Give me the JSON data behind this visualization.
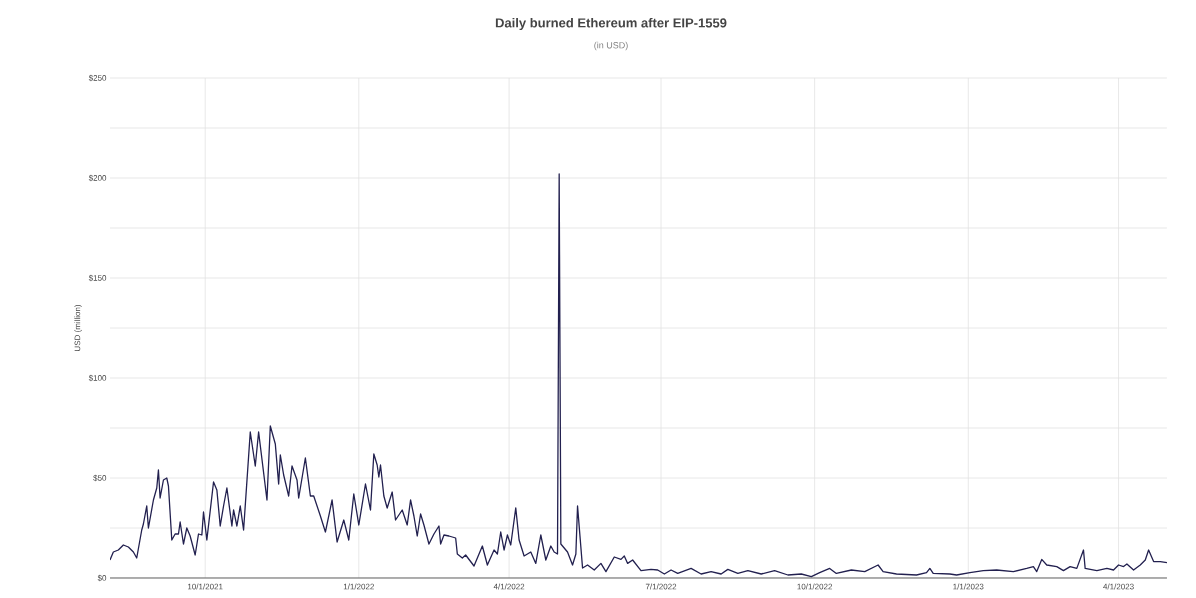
{
  "chart_data": {
    "type": "line",
    "title": "Daily burned Ethereum after EIP-1559",
    "subtitle": "(in USD)",
    "ylabel": "USD (million)",
    "xlim": [
      "2021-08-05",
      "2023-04-30"
    ],
    "ylim": [
      0,
      250
    ],
    "xticks": [
      {
        "value": "2021-10-01",
        "label": "10/1/2021"
      },
      {
        "value": "2022-01-01",
        "label": "1/1/2022"
      },
      {
        "value": "2022-04-01",
        "label": "4/1/2022"
      },
      {
        "value": "2022-07-01",
        "label": "7/1/2022"
      },
      {
        "value": "2022-10-01",
        "label": "10/1/2022"
      },
      {
        "value": "2023-01-01",
        "label": "1/1/2023"
      },
      {
        "value": "2023-04-01",
        "label": "4/1/2023"
      }
    ],
    "yticks": [
      {
        "value": 0,
        "label": "$0"
      },
      {
        "value": 25,
        "label": null
      },
      {
        "value": 50,
        "label": "$50"
      },
      {
        "value": 75,
        "label": null
      },
      {
        "value": 100,
        "label": "$100"
      },
      {
        "value": 125,
        "label": null
      },
      {
        "value": 150,
        "label": "$150"
      },
      {
        "value": 175,
        "label": null
      },
      {
        "value": 200,
        "label": "$200"
      },
      {
        "value": 225,
        "label": null
      },
      {
        "value": 250,
        "label": "$250"
      }
    ],
    "grid": true,
    "marker": "none",
    "line_style": "solid",
    "series": [
      {
        "color": "#22204f",
        "x": [
          "2021-08-05",
          "2021-08-07",
          "2021-08-10",
          "2021-08-13",
          "2021-08-16",
          "2021-08-19",
          "2021-08-21",
          "2021-08-24",
          "2021-08-25",
          "2021-08-27",
          "2021-08-28",
          "2021-08-31",
          "2021-09-02",
          "2021-09-03",
          "2021-09-04",
          "2021-09-06",
          "2021-09-08",
          "2021-09-09",
          "2021-09-11",
          "2021-09-13",
          "2021-09-15",
          "2021-09-16",
          "2021-09-18",
          "2021-09-20",
          "2021-09-22",
          "2021-09-25",
          "2021-09-27",
          "2021-09-29",
          "2021-09-30",
          "2021-10-02",
          "2021-10-06",
          "2021-10-08",
          "2021-10-10",
          "2021-10-12",
          "2021-10-14",
          "2021-10-17",
          "2021-10-18",
          "2021-10-20",
          "2021-10-22",
          "2021-10-24",
          "2021-10-28",
          "2021-10-31",
          "2021-11-02",
          "2021-11-07",
          "2021-11-09",
          "2021-11-12",
          "2021-11-14",
          "2021-11-15",
          "2021-11-17",
          "2021-11-20",
          "2021-11-22",
          "2021-11-25",
          "2021-11-26",
          "2021-11-30",
          "2021-12-03",
          "2021-12-05",
          "2021-12-09",
          "2021-12-12",
          "2021-12-16",
          "2021-12-19",
          "2021-12-23",
          "2021-12-26",
          "2021-12-29",
          "2022-01-01",
          "2022-01-05",
          "2022-01-08",
          "2022-01-10",
          "2022-01-12",
          "2022-01-13",
          "2022-01-14",
          "2022-01-16",
          "2022-01-18",
          "2022-01-21",
          "2022-01-23",
          "2022-01-27",
          "2022-01-30",
          "2022-02-01",
          "2022-02-03",
          "2022-02-05",
          "2022-02-07",
          "2022-02-09",
          "2022-02-12",
          "2022-02-15",
          "2022-02-18",
          "2022-02-19",
          "2022-02-21",
          "2022-02-24",
          "2022-02-28",
          "2022-03-01",
          "2022-03-04",
          "2022-03-06",
          "2022-03-11",
          "2022-03-16",
          "2022-03-19",
          "2022-03-23",
          "2022-03-25",
          "2022-03-27",
          "2022-03-29",
          "2022-03-31",
          "2022-04-02",
          "2022-04-05",
          "2022-04-07",
          "2022-04-10",
          "2022-04-14",
          "2022-04-17",
          "2022-04-20",
          "2022-04-23",
          "2022-04-26",
          "2022-04-28",
          "2022-04-30",
          "2022-05-01",
          "2022-05-02",
          "2022-05-06",
          "2022-05-09",
          "2022-05-11",
          "2022-05-12",
          "2022-05-15",
          "2022-05-18",
          "2022-05-22",
          "2022-05-26",
          "2022-05-29",
          "2022-06-03",
          "2022-06-07",
          "2022-06-09",
          "2022-06-11",
          "2022-06-14",
          "2022-06-19",
          "2022-06-25",
          "2022-06-29",
          "2022-07-03",
          "2022-07-07",
          "2022-07-11",
          "2022-07-19",
          "2022-07-25",
          "2022-07-31",
          "2022-08-06",
          "2022-08-10",
          "2022-08-16",
          "2022-08-22",
          "2022-08-30",
          "2022-09-07",
          "2022-09-15",
          "2022-09-23",
          "2022-09-29",
          "2022-10-04",
          "2022-10-10",
          "2022-10-14",
          "2022-10-23",
          "2022-10-31",
          "2022-11-08",
          "2022-11-11",
          "2022-11-19",
          "2022-12-01",
          "2022-12-07",
          "2022-12-09",
          "2022-12-11",
          "2022-12-21",
          "2022-12-25",
          "2023-01-02",
          "2023-01-10",
          "2023-01-18",
          "2023-01-28",
          "2023-02-05",
          "2023-02-09",
          "2023-02-11",
          "2023-02-14",
          "2023-02-17",
          "2023-02-23",
          "2023-02-27",
          "2023-03-03",
          "2023-03-07",
          "2023-03-11",
          "2023-03-12",
          "2023-03-19",
          "2023-03-25",
          "2023-03-29",
          "2023-04-01",
          "2023-04-04",
          "2023-04-06",
          "2023-04-10",
          "2023-04-14",
          "2023-04-17",
          "2023-04-19",
          "2023-04-22",
          "2023-04-26",
          "2023-04-30"
        ],
        "values": [
          9,
          13,
          14,
          16.5,
          15.5,
          13,
          10,
          24,
          27,
          36,
          25,
          39,
          45,
          54,
          40,
          49,
          50,
          46,
          19,
          22,
          22,
          28,
          17,
          25,
          21,
          11.5,
          22,
          21.5,
          33,
          19,
          48,
          44,
          26,
          36,
          45,
          26,
          34,
          26,
          36,
          24,
          73,
          56,
          73,
          39,
          76,
          67,
          47,
          61.5,
          51.5,
          41,
          56,
          49,
          40,
          60,
          41,
          41,
          31,
          23,
          39,
          18,
          29,
          19,
          42,
          26.5,
          47,
          34,
          62,
          56.5,
          50.5,
          56.5,
          41,
          35,
          43,
          29,
          34,
          26.5,
          39,
          31,
          21,
          32,
          26.5,
          17,
          22,
          26,
          17,
          21.5,
          21,
          20,
          12,
          10,
          11.5,
          6,
          16,
          6.5,
          14,
          12,
          23,
          14,
          21.5,
          16.5,
          35,
          19,
          11,
          13,
          7.3,
          21.5,
          9,
          16,
          13,
          12,
          202,
          17,
          13,
          6.5,
          12,
          36,
          5,
          6.5,
          4,
          7.3,
          3.2,
          10.5,
          9.3,
          11,
          7.3,
          9,
          3.7,
          4.3,
          4,
          2,
          4,
          2.3,
          4.8,
          2,
          3.2,
          2,
          4.3,
          2.3,
          3.7,
          2,
          3.7,
          1.5,
          2,
          0.7,
          2.7,
          4.8,
          2.3,
          4,
          3.2,
          6.5,
          3.2,
          2,
          1.5,
          2.7,
          4.8,
          2.3,
          2,
          1.5,
          2.7,
          3.7,
          4,
          3.2,
          4.8,
          5.7,
          3.2,
          9.3,
          6.5,
          5.7,
          3.7,
          5.7,
          4.8,
          14,
          4.8,
          3.7,
          4.8,
          4,
          6.5,
          5.7,
          7,
          4,
          6.5,
          9,
          14,
          8.2,
          8.2,
          7.7
        ]
      }
    ]
  }
}
